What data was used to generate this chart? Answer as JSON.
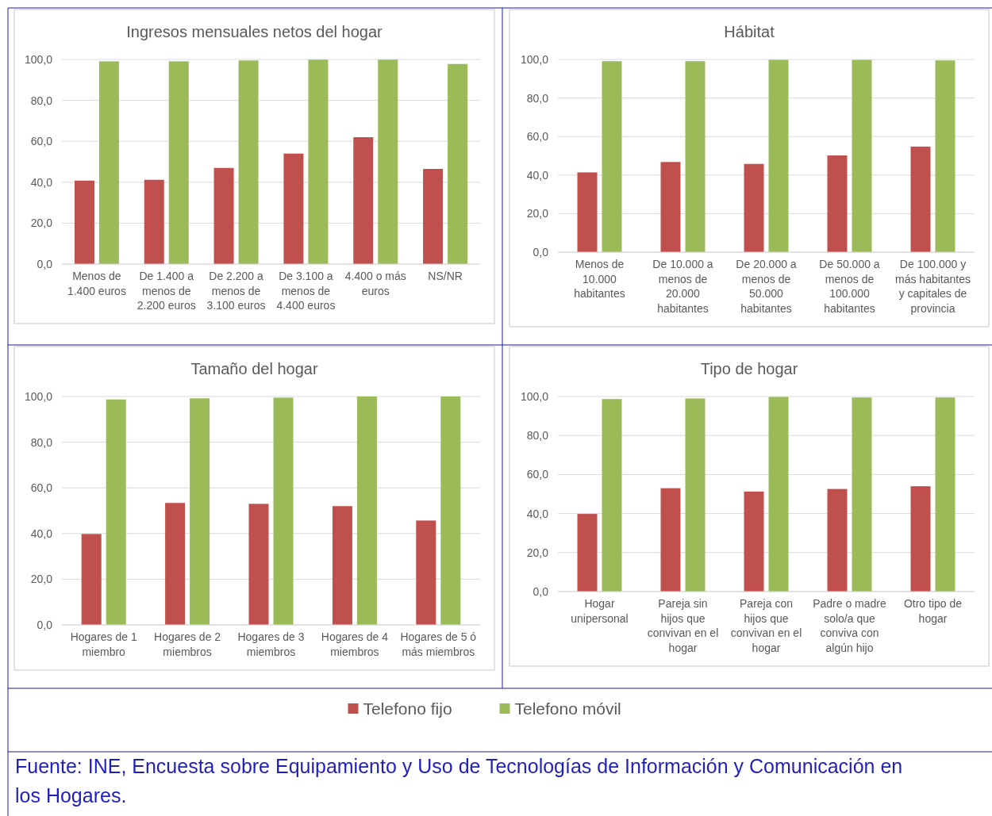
{
  "chart_data": [
    {
      "type": "bar",
      "title": "Ingresos mensuales netos del hogar",
      "categories": [
        "Menos de 1.400 euros",
        "De 1.400 a menos de 2.200 euros",
        "De 2.200 a menos de 3.100 euros",
        "De 3.100 a menos de 4.400 euros",
        "4.400 o más euros",
        "NS/NR"
      ],
      "series": [
        {
          "color": "#c0504d",
          "values": [
            40.8,
            41.2,
            47.0,
            54.0,
            62.0,
            46.5
          ]
        },
        {
          "color": "#9bbb59",
          "values": [
            99.1,
            99.1,
            99.5,
            99.9,
            99.9,
            97.8
          ]
        }
      ],
      "ylim": [
        0,
        100
      ],
      "yticks": [
        {
          "value": 0,
          "label": "0,0"
        },
        {
          "value": 20,
          "label": "20,0"
        },
        {
          "value": 40,
          "label": "40,0"
        },
        {
          "value": 60,
          "label": "60,0"
        },
        {
          "value": 80,
          "label": "80,0"
        },
        {
          "value": 100,
          "label": "100,0"
        }
      ],
      "grid": "y"
    },
    {
      "type": "bar",
      "title": "Hábitat",
      "categories": [
        "Menos de 10.000 habitantes",
        "De 10.000 a menos de 20.000 habitantes",
        "De 20.000 a menos de 50.000 habitantes",
        "De 50.000 a menos de 100.000 habitantes",
        "De 100.000 y más habitantes y capitales de provincia"
      ],
      "series": [
        {
          "color": "#c0504d",
          "values": [
            41.4,
            46.8,
            45.8,
            50.2,
            54.8
          ]
        },
        {
          "color": "#9bbb59",
          "values": [
            99.1,
            99.1,
            99.8,
            99.8,
            99.5
          ]
        }
      ],
      "ylim": [
        0,
        100
      ],
      "yticks": [
        {
          "value": 0,
          "label": "0,0"
        },
        {
          "value": 20,
          "label": "20,0"
        },
        {
          "value": 40,
          "label": "40,0"
        },
        {
          "value": 60,
          "label": "60,0"
        },
        {
          "value": 80,
          "label": "80,0"
        },
        {
          "value": 100,
          "label": "100,0"
        }
      ],
      "grid": "y"
    },
    {
      "type": "bar",
      "title": "Tamaño del hogar",
      "categories": [
        "Hogares de 1 miembro",
        "Hogares de 2 miembros",
        "Hogares de 3 miembros",
        "Hogares de 4 miembros",
        "Hogares de 5 ó más miembros"
      ],
      "series": [
        {
          "color": "#c0504d",
          "values": [
            39.8,
            53.4,
            53.0,
            52.0,
            45.7
          ]
        },
        {
          "color": "#9bbb59",
          "values": [
            98.7,
            99.2,
            99.5,
            100.0,
            100.0
          ]
        }
      ],
      "ylim": [
        0,
        100
      ],
      "yticks": [
        {
          "value": 0,
          "label": "0,0"
        },
        {
          "value": 20,
          "label": "20,0"
        },
        {
          "value": 40,
          "label": "40,0"
        },
        {
          "value": 60,
          "label": "60,0"
        },
        {
          "value": 80,
          "label": "80,0"
        },
        {
          "value": 100,
          "label": "100,0"
        }
      ],
      "grid": "y"
    },
    {
      "type": "bar",
      "title": "Tipo de hogar",
      "categories": [
        "Hogar unipersonal",
        "Pareja sin hijos que convivan en el hogar",
        "Pareja con hijos que convivan en el hogar",
        "Padre o madre solo/a que conviva con algún hijo",
        "Otro tipo de hogar"
      ],
      "series": [
        {
          "name": "Telefono fijo",
          "color": "#c0504d",
          "values": [
            39.8,
            53.0,
            51.3,
            52.6,
            54.0
          ]
        },
        {
          "name": "Telefono móvil",
          "color": "#9bbb59",
          "values": [
            98.7,
            99.0,
            99.8,
            99.5,
            99.5
          ]
        }
      ],
      "ylim": [
        0,
        100
      ],
      "yticks": [
        {
          "value": 0,
          "label": "0,0"
        },
        {
          "value": 20,
          "label": "20,0"
        },
        {
          "value": 40,
          "label": "40,0"
        },
        {
          "value": 60,
          "label": "60,0"
        },
        {
          "value": 80,
          "label": "80,0"
        },
        {
          "value": 100,
          "label": "100,0"
        }
      ],
      "grid": "y",
      "legend": "bottom",
      "annotations": [
        "Fuente: INE, Encuesta sobre Equipamiento y Uso de Tecnologías de Información y Comunicación en los Hogares."
      ]
    }
  ]
}
